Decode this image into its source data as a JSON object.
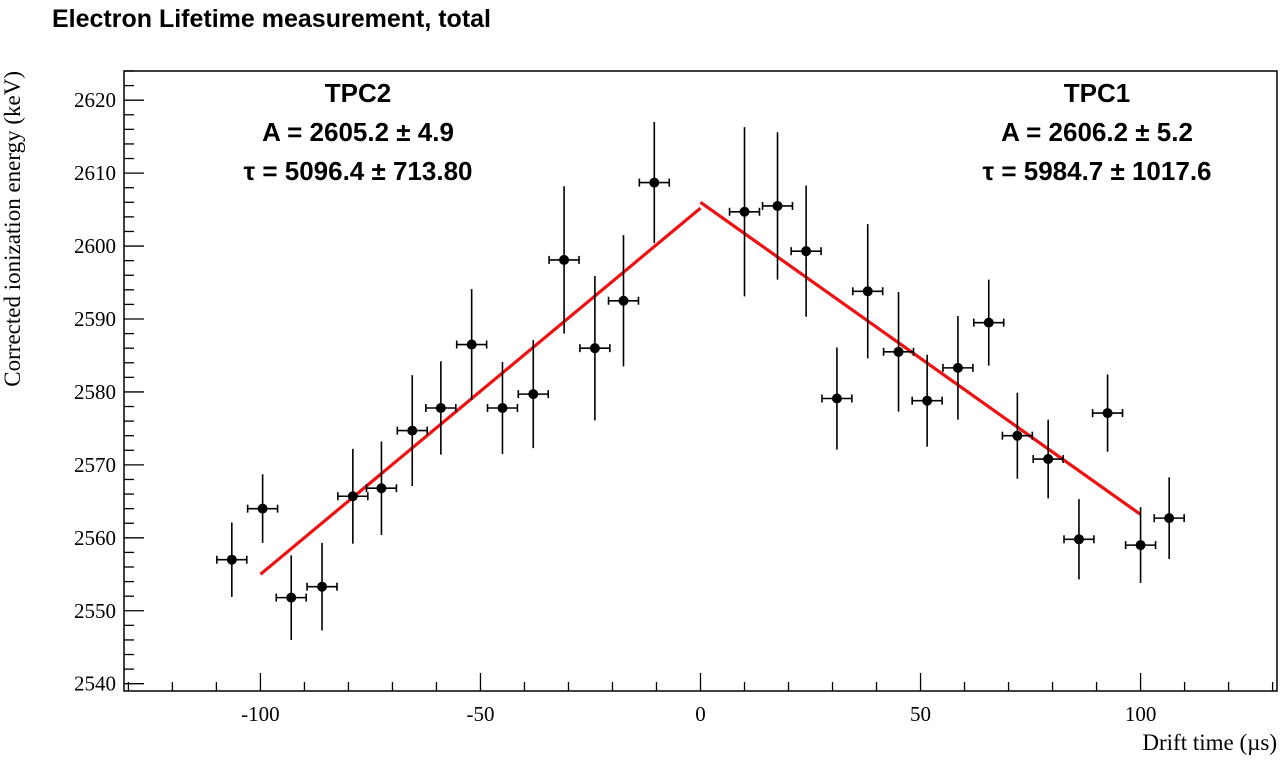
{
  "chart_data": {
    "type": "scatter",
    "title": "Electron Lifetime measurement, total",
    "xlabel": "Drift time (µs)",
    "ylabel": "Corrected ionization energy (keV)",
    "xlim": [
      -131,
      131
    ],
    "ylim": [
      2539,
      2624
    ],
    "xticks": [
      -100,
      -50,
      0,
      50,
      100
    ],
    "yticks": [
      2540,
      2550,
      2560,
      2570,
      2580,
      2590,
      2600,
      2610,
      2620
    ],
    "grid": false,
    "series": [
      {
        "x": [
          -106.5,
          -99.5,
          -93,
          -86,
          -79,
          -72.5,
          -65.5,
          -59,
          -52,
          -45,
          -38,
          -31,
          -24,
          -17.5,
          -10.5,
          10,
          17.5,
          24,
          31,
          38,
          45,
          51.5,
          58.5,
          65.5,
          72,
          79,
          86,
          92.5,
          100,
          106.5
        ],
        "y": [
          2557,
          2564,
          2551.8,
          2553.3,
          2565.7,
          2566.8,
          2574.7,
          2577.8,
          2586.5,
          2577.8,
          2579.7,
          2598.1,
          2586,
          2592.5,
          2608.7,
          2604.7,
          2605.5,
          2599.3,
          2579.1,
          2593.8,
          2585.5,
          2578.8,
          2583.3,
          2589.5,
          2574,
          2570.8,
          2559.8,
          2577.1,
          2559,
          2562.7
        ],
        "yerr": [
          5.1,
          4.7,
          5.8,
          6,
          6.5,
          6.4,
          7.6,
          6.4,
          7.6,
          6.3,
          7.4,
          10.1,
          9.9,
          9,
          8.3,
          11.6,
          10.1,
          9,
          7,
          9.2,
          8.2,
          6.3,
          7.1,
          5.9,
          5.9,
          5.4,
          5.5,
          5.3,
          5.2,
          5.6
        ],
        "xerr": 3.4
      }
    ],
    "fits": [
      {
        "label": "TPC2",
        "x_range": [
          -100,
          0
        ],
        "y_range": [
          2555,
          2605.2
        ]
      },
      {
        "label": "TPC1",
        "x_range": [
          0,
          100
        ],
        "y_range": [
          2606,
          2563.2
        ]
      }
    ],
    "annotations": [
      {
        "label": "TPC2",
        "amp": "A = 2605.2 ± 4.9",
        "tau": "τ = 5096.4 ± 713.80"
      },
      {
        "label": "TPC1",
        "amp": "A = 2606.2 ± 5.2",
        "tau": "τ = 5984.7 ± 1017.6"
      }
    ],
    "colors": {
      "points": "#000000",
      "fit": "#ee1111",
      "frame": "#000000"
    }
  }
}
